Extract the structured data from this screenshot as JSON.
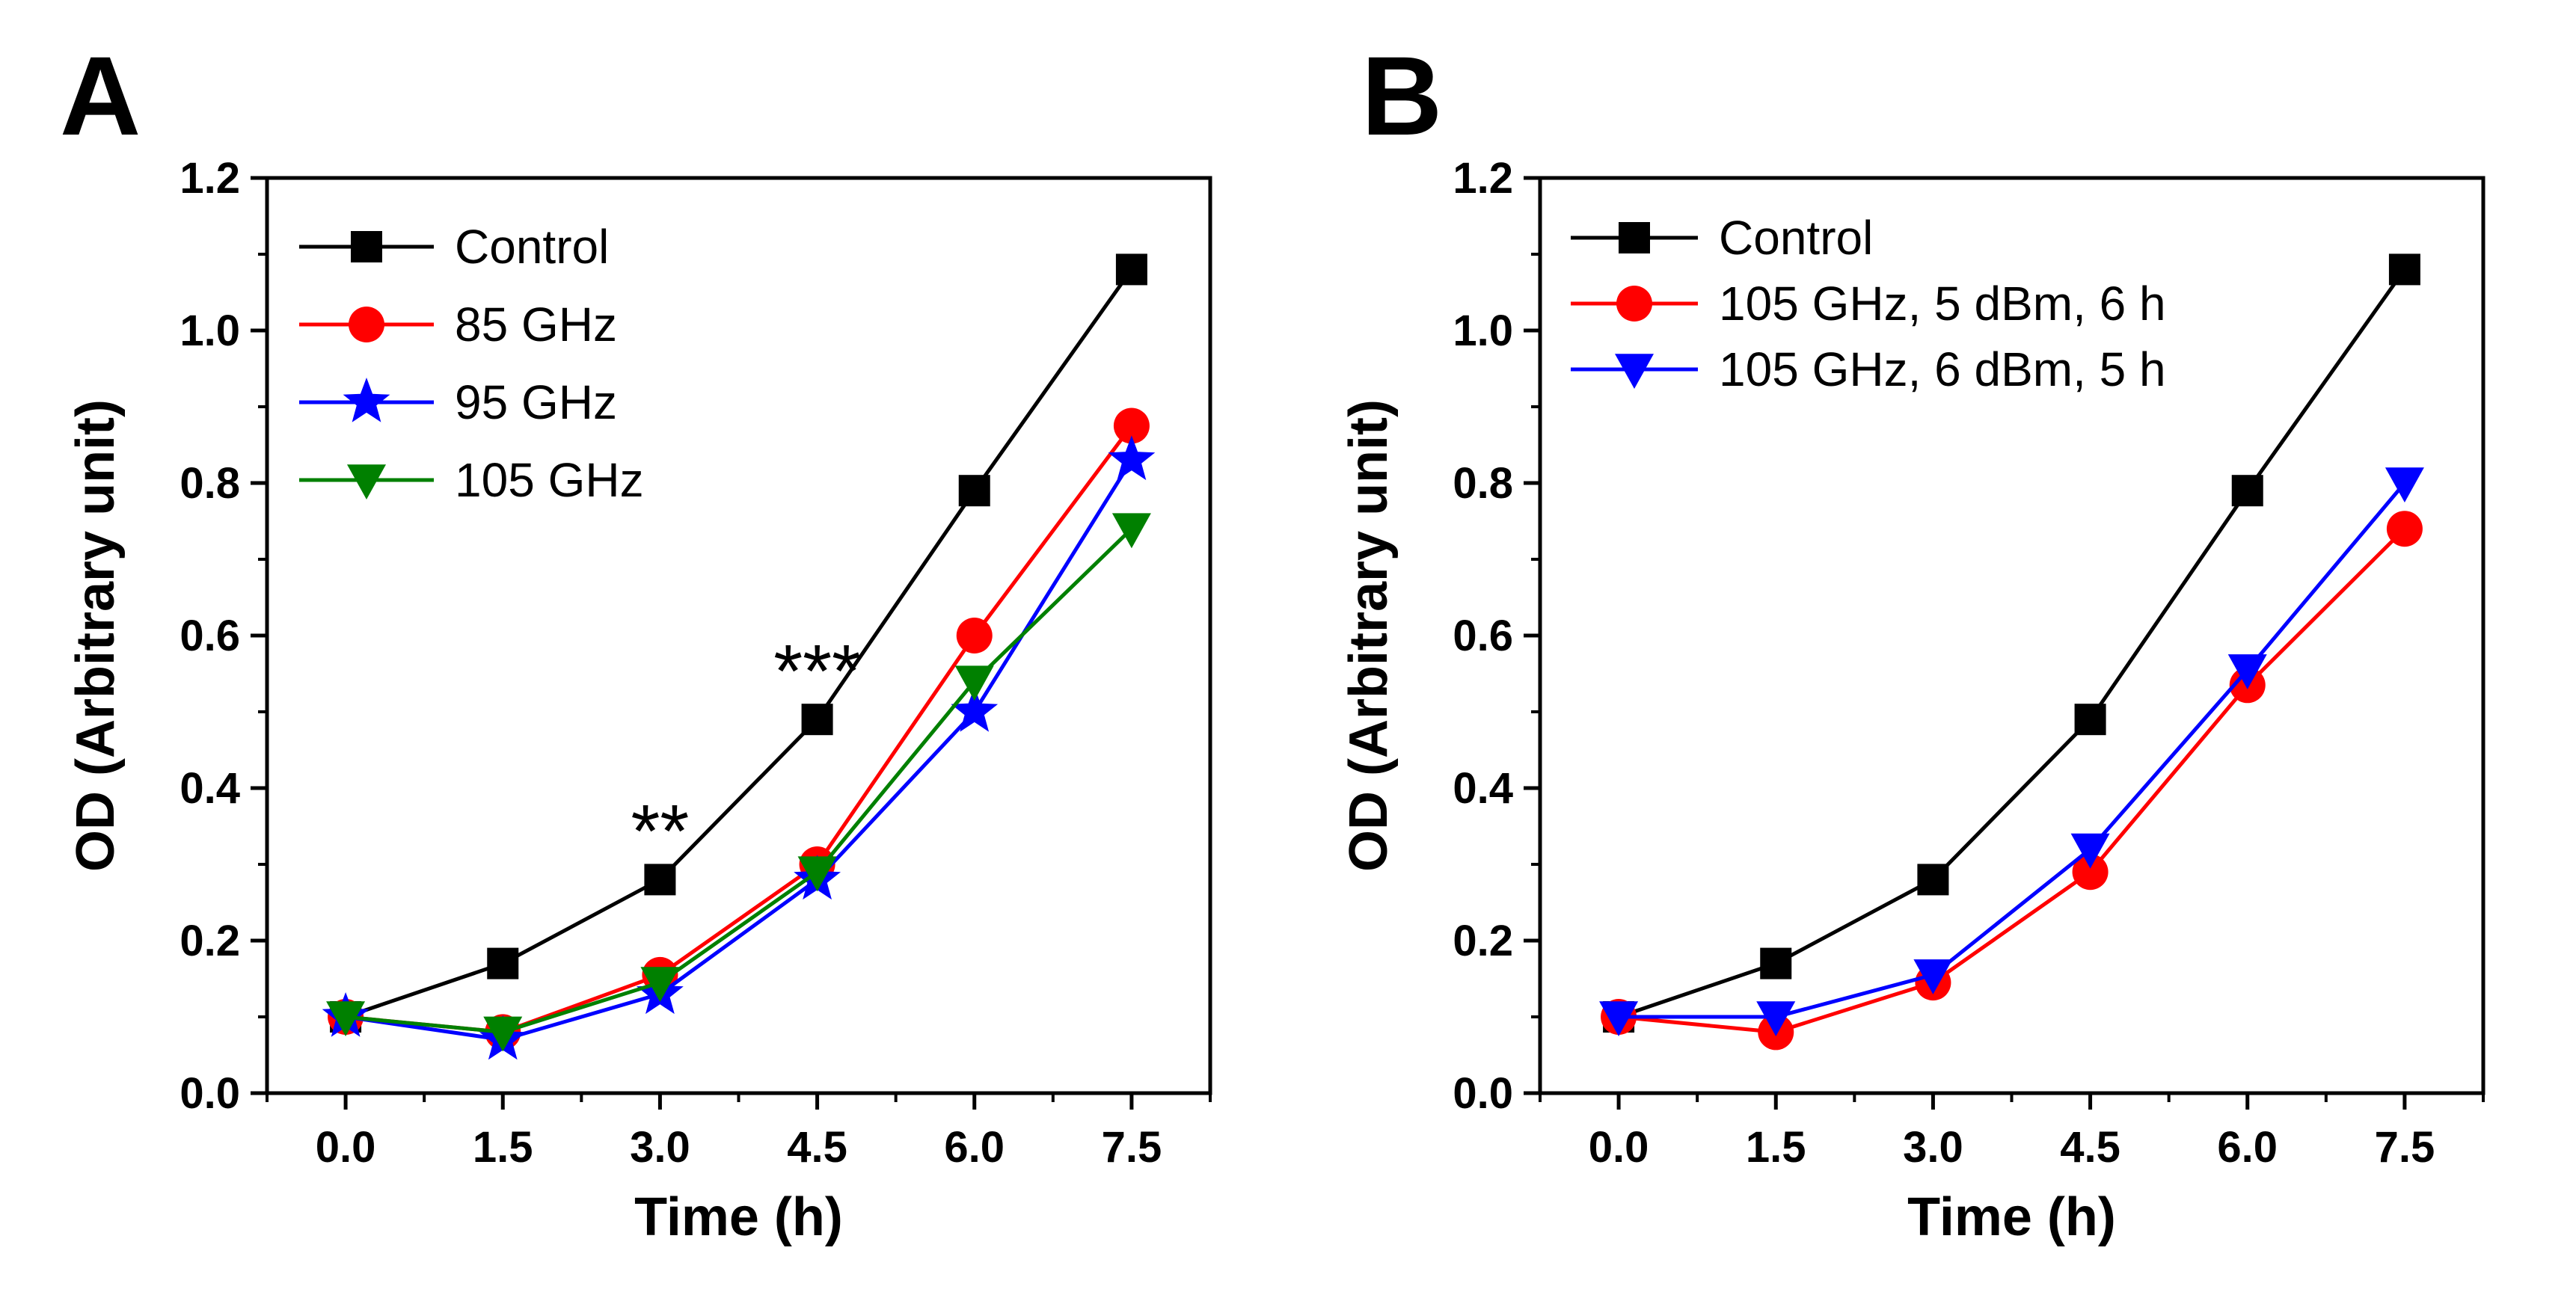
{
  "chart_data": [
    {
      "id": "A",
      "type": "line",
      "panel_label": "A",
      "x": [
        0.0,
        1.5,
        3.0,
        4.5,
        6.0,
        7.5
      ],
      "xtick_labels": [
        "0.0",
        "1.5",
        "3.0",
        "4.5",
        "6.0",
        "7.5"
      ],
      "yticks": [
        0.0,
        0.2,
        0.4,
        0.6,
        0.8,
        1.0,
        1.2
      ],
      "ytick_labels": [
        "0.0",
        "0.2",
        "0.4",
        "0.6",
        "0.8",
        "1.0",
        "1.2"
      ],
      "xlim": [
        -0.75,
        8.25
      ],
      "ylim": [
        0.0,
        1.2
      ],
      "xlabel": "Time (h)",
      "ylabel": "OD (Arbitrary unit)",
      "legend_position": "top-left",
      "series": [
        {
          "name": "Control",
          "color": "#000000",
          "marker": "square",
          "values": [
            0.1,
            0.17,
            0.28,
            0.49,
            0.79,
            1.08
          ]
        },
        {
          "name": "85 GHz",
          "color": "#ff0000",
          "marker": "circle",
          "values": [
            0.1,
            0.08,
            0.155,
            0.3,
            0.6,
            0.875
          ]
        },
        {
          "name": "95 GHz",
          "color": "#0000ff",
          "marker": "star",
          "values": [
            0.1,
            0.07,
            0.13,
            0.28,
            0.5,
            0.83
          ]
        },
        {
          "name": "105 GHz",
          "color": "#008000",
          "marker": "triangle-down",
          "values": [
            0.1,
            0.08,
            0.145,
            0.29,
            0.54,
            0.74
          ]
        }
      ],
      "annotations": [
        {
          "text": "**",
          "x": 3.0,
          "y": 0.3
        },
        {
          "text": "***",
          "x": 4.5,
          "y": 0.51
        }
      ]
    },
    {
      "id": "B",
      "type": "line",
      "panel_label": "B",
      "x": [
        0.0,
        1.5,
        3.0,
        4.5,
        6.0,
        7.5
      ],
      "xtick_labels": [
        "0.0",
        "1.5",
        "3.0",
        "4.5",
        "6.0",
        "7.5"
      ],
      "yticks": [
        0.0,
        0.2,
        0.4,
        0.6,
        0.8,
        1.0,
        1.2
      ],
      "ytick_labels": [
        "0.0",
        "0.2",
        "0.4",
        "0.6",
        "0.8",
        "1.0",
        "1.2"
      ],
      "xlim": [
        -0.75,
        8.25
      ],
      "ylim": [
        0.0,
        1.2
      ],
      "xlabel": "Time (h)",
      "ylabel": "OD (Arbitrary unit)",
      "legend_position": "top-left",
      "series": [
        {
          "name": "Control",
          "color": "#000000",
          "marker": "square",
          "values": [
            0.1,
            0.17,
            0.28,
            0.49,
            0.79,
            1.08
          ]
        },
        {
          "name": "105 GHz, 5 dBm, 6 h",
          "color": "#ff0000",
          "marker": "circle",
          "values": [
            0.1,
            0.08,
            0.145,
            0.29,
            0.535,
            0.74
          ]
        },
        {
          "name": "105 GHz, 6 dBm, 5 h",
          "color": "#0000ff",
          "marker": "triangle-down",
          "values": [
            0.1,
            0.1,
            0.155,
            0.32,
            0.555,
            0.8
          ]
        }
      ],
      "annotations": []
    }
  ]
}
